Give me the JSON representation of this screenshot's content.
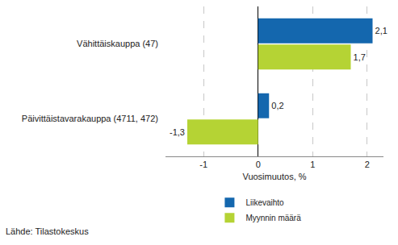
{
  "chart_data": {
    "type": "bar",
    "orientation": "horizontal",
    "categories": [
      "Vähittäiskauppa (47)",
      "Päivittäistavarakauppa (4711, 472)"
    ],
    "series": [
      {
        "name": "Liikevaihto",
        "color": "#1467ae",
        "values": [
          2.1,
          0.2
        ],
        "value_labels": [
          "2,1",
          "0,2"
        ]
      },
      {
        "name": "Myynnin määrä",
        "color": "#b5d334",
        "values": [
          1.7,
          -1.3
        ],
        "value_labels": [
          "1,7",
          "-1,3"
        ]
      }
    ],
    "x_label": "Vuosimuutos, %",
    "xlim": [
      -1.7,
      2.3
    ],
    "xticks": [
      -1,
      0,
      1,
      2
    ],
    "grid": true,
    "data_labels": true,
    "legend": "bottom",
    "annotations": [
      "Lähde: Tilastokeskus"
    ]
  }
}
